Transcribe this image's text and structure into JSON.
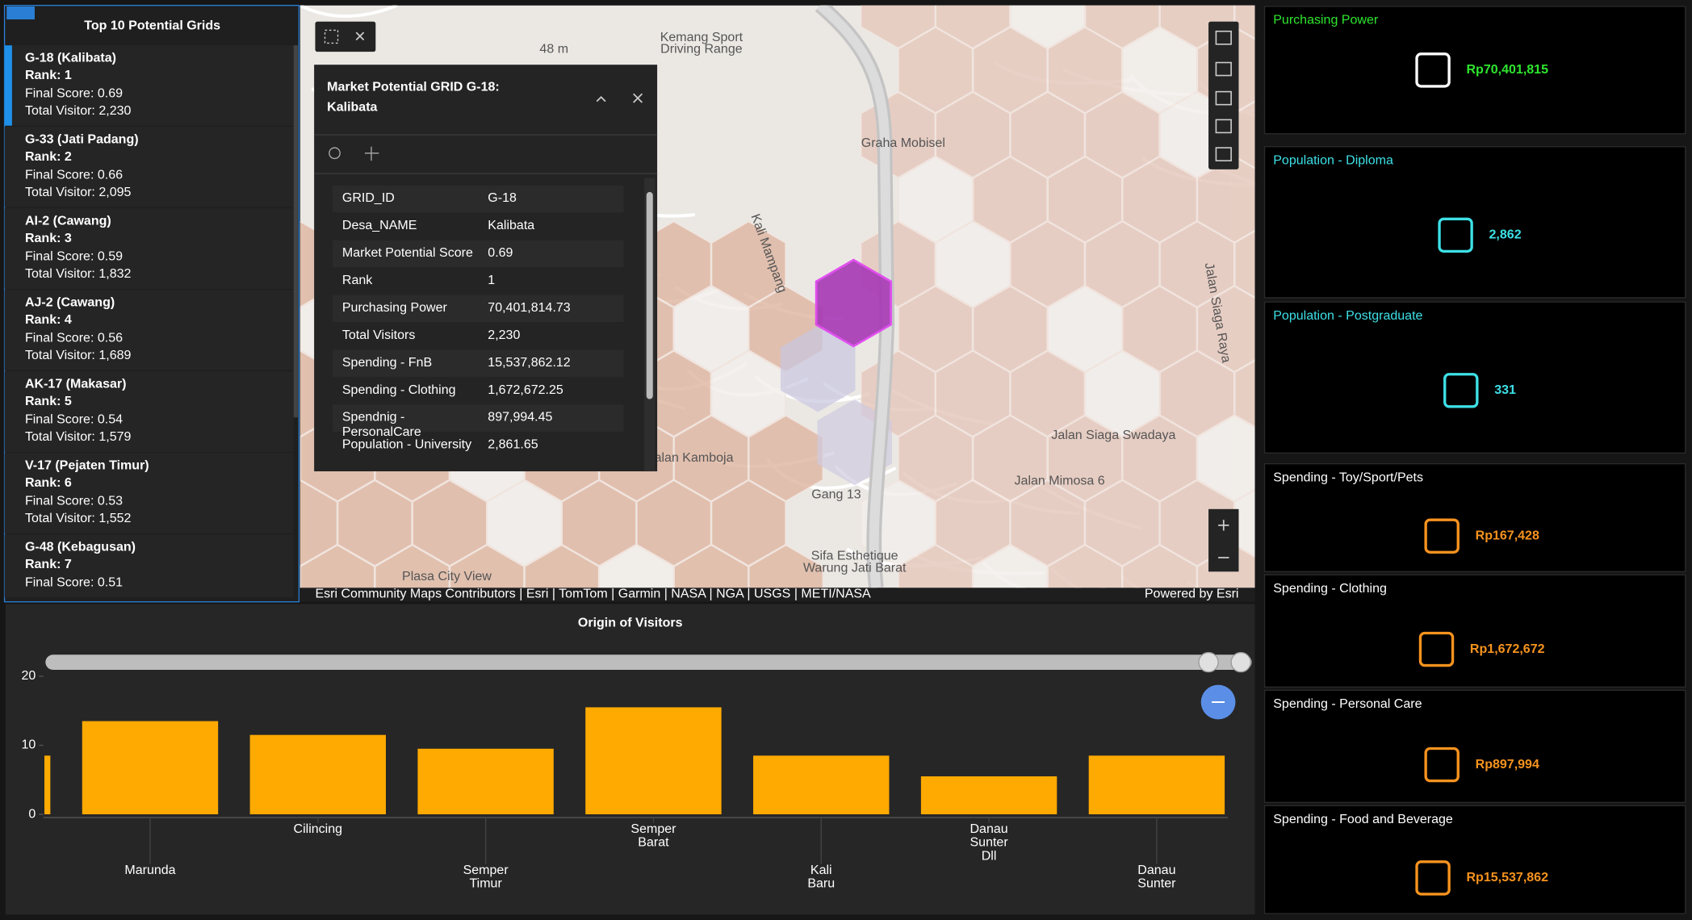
{
  "list": {
    "title": "Top 10 Potential Grids",
    "items": [
      {
        "name": "G-18 (Kalibata)",
        "rank": "Rank: 1",
        "score": "Final Score: 0.69",
        "visitor": "Total Visitor: 2,230"
      },
      {
        "name": "G-33 (Jati Padang)",
        "rank": "Rank: 2",
        "score": "Final Score: 0.66",
        "visitor": "Total Visitor: 2,095"
      },
      {
        "name": "AI-2 (Cawang)",
        "rank": "Rank: 3",
        "score": "Final Score: 0.59",
        "visitor": "Total Visitor: 1,832"
      },
      {
        "name": "AJ-2 (Cawang)",
        "rank": "Rank: 4",
        "score": "Final Score: 0.56",
        "visitor": "Total Visitor: 1,689"
      },
      {
        "name": "AK-17 (Makasar)",
        "rank": "Rank: 5",
        "score": "Final Score: 0.54",
        "visitor": "Total Visitor: 1,579"
      },
      {
        "name": "V-17 (Pejaten Timur)",
        "rank": "Rank: 6",
        "score": "Final Score: 0.53",
        "visitor": "Total Visitor: 1,552"
      },
      {
        "name": "G-48 (Kebagusan)",
        "rank": "Rank: 7",
        "score": "Final Score: 0.51"
      }
    ]
  },
  "popup": {
    "title": "Market Potential GRID G-18: Kalibata",
    "rows": [
      [
        "GRID_ID",
        "G-18"
      ],
      [
        "Desa_NAME",
        "Kalibata"
      ],
      [
        "Market Potential Score",
        "0.69"
      ],
      [
        "Rank",
        "1"
      ],
      [
        "Purchasing Power",
        "70,401,814.73"
      ],
      [
        "Total Visitors",
        "2,230"
      ],
      [
        "Spending - FnB",
        "15,537,862.12"
      ],
      [
        "Spending - Clothing",
        "1,672,672.25"
      ],
      [
        "Spendnig - PersonalCare",
        "897,994.45"
      ],
      [
        "Population - University",
        "2,861.65"
      ]
    ]
  },
  "map": {
    "labels": [
      "Kemang Sport Driving Range",
      "48 m",
      "Graha Mobisel",
      "Kali Mampang",
      "Jalan Kamboja",
      "Gang 13",
      "Jalan Siaga Swadaya",
      "Jalan Mimosa 6",
      "Jalan Siaga Raya",
      "Sifa Esthetique Warung Jati Barat",
      "Plasa City View"
    ],
    "attribution": "Esri Community Maps Contributors | Esri | TomTom | Garmin | NASA | NGA | USGS | METI/NASA",
    "powered": "Powered by Esri"
  },
  "chart_data": {
    "type": "bar",
    "title": "Origin of Visitors",
    "color": "#ffaa00",
    "categories": [
      null,
      [
        "Marunda"
      ],
      [
        "Cilincing"
      ],
      [
        "Semper",
        "Timur"
      ],
      [
        "Semper",
        "Barat"
      ],
      [
        "Kali",
        "Baru"
      ],
      [
        "Danau",
        "Sunter",
        "Dll"
      ],
      [
        "Danau",
        "Sunter"
      ]
    ],
    "values": [
      8.5,
      13.5,
      11.5,
      9.5,
      15.5,
      8.5,
      5.5,
      8.5
    ],
    "ylim": [
      0,
      20
    ],
    "yticks": [
      0,
      10,
      20
    ]
  },
  "cards": [
    {
      "label": "Purchasing Power",
      "value": "Rp70,401,815",
      "color": "#2ee62e"
    },
    {
      "label": "Population - Diploma",
      "value": "2,862",
      "color": "#3de0e6"
    },
    {
      "label": "Population - Postgraduate",
      "value": "331",
      "color": "#3de0e6"
    },
    {
      "label": "Spending - Toy/Sport/Pets",
      "value": "Rp167,428",
      "color": "#f7931e"
    },
    {
      "label": "Spending - Clothing",
      "value": "Rp1,672,672",
      "color": "#f7931e"
    },
    {
      "label": "Spending - Personal Care",
      "value": "Rp897,994",
      "color": "#f7931e"
    },
    {
      "label": "Spending - Food and Beverage",
      "value": "Rp15,537,862",
      "color": "#f7931e"
    }
  ]
}
